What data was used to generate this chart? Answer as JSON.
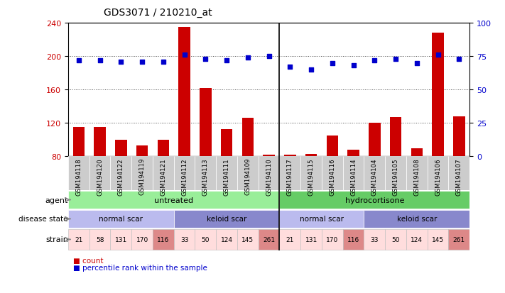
{
  "title": "GDS3071 / 210210_at",
  "samples": [
    "GSM194118",
    "GSM194120",
    "GSM194122",
    "GSM194119",
    "GSM194121",
    "GSM194112",
    "GSM194113",
    "GSM194111",
    "GSM194109",
    "GSM194110",
    "GSM194117",
    "GSM194115",
    "GSM194116",
    "GSM194114",
    "GSM194104",
    "GSM194105",
    "GSM194108",
    "GSM194106",
    "GSM194107"
  ],
  "counts": [
    115,
    115,
    100,
    93,
    100,
    235,
    162,
    113,
    126,
    82,
    82,
    83,
    105,
    88,
    120,
    127,
    90,
    228,
    128
  ],
  "percentiles": [
    72,
    72,
    71,
    71,
    71,
    76,
    73,
    72,
    74,
    75,
    67,
    65,
    70,
    68,
    72,
    73,
    70,
    76,
    73
  ],
  "ylim_left": [
    80,
    240
  ],
  "ylim_right": [
    0,
    100
  ],
  "yticks_left": [
    80,
    120,
    160,
    200,
    240
  ],
  "yticks_right": [
    0,
    25,
    50,
    75,
    100
  ],
  "bar_color": "#cc0000",
  "dot_color": "#0000cc",
  "agent_groups": [
    {
      "label": "untreated",
      "start": 0,
      "end": 10,
      "color": "#99ee99"
    },
    {
      "label": "hydrocortisone",
      "start": 10,
      "end": 19,
      "color": "#66cc66"
    }
  ],
  "disease_groups": [
    {
      "label": "normal scar",
      "start": 0,
      "end": 5,
      "color": "#bbbbee"
    },
    {
      "label": "keloid scar",
      "start": 5,
      "end": 10,
      "color": "#8888cc"
    },
    {
      "label": "normal scar",
      "start": 10,
      "end": 14,
      "color": "#bbbbee"
    },
    {
      "label": "keloid scar",
      "start": 14,
      "end": 19,
      "color": "#8888cc"
    }
  ],
  "strain_values": [
    "21",
    "58",
    "131",
    "170",
    "116",
    "33",
    "50",
    "124",
    "145",
    "261",
    "21",
    "131",
    "170",
    "116",
    "33",
    "50",
    "124",
    "145",
    "261"
  ],
  "strain_highlight": [
    4,
    9,
    13,
    18
  ],
  "strain_color_normal": "#ffdddd",
  "strain_color_highlight": "#dd8888",
  "separator_after": 9,
  "background_color": "#ffffff",
  "label_color_left": "#cc0000",
  "label_color_right": "#0000cc",
  "tick_bg_color": "#cccccc",
  "grid_dotted_color": "#555555"
}
